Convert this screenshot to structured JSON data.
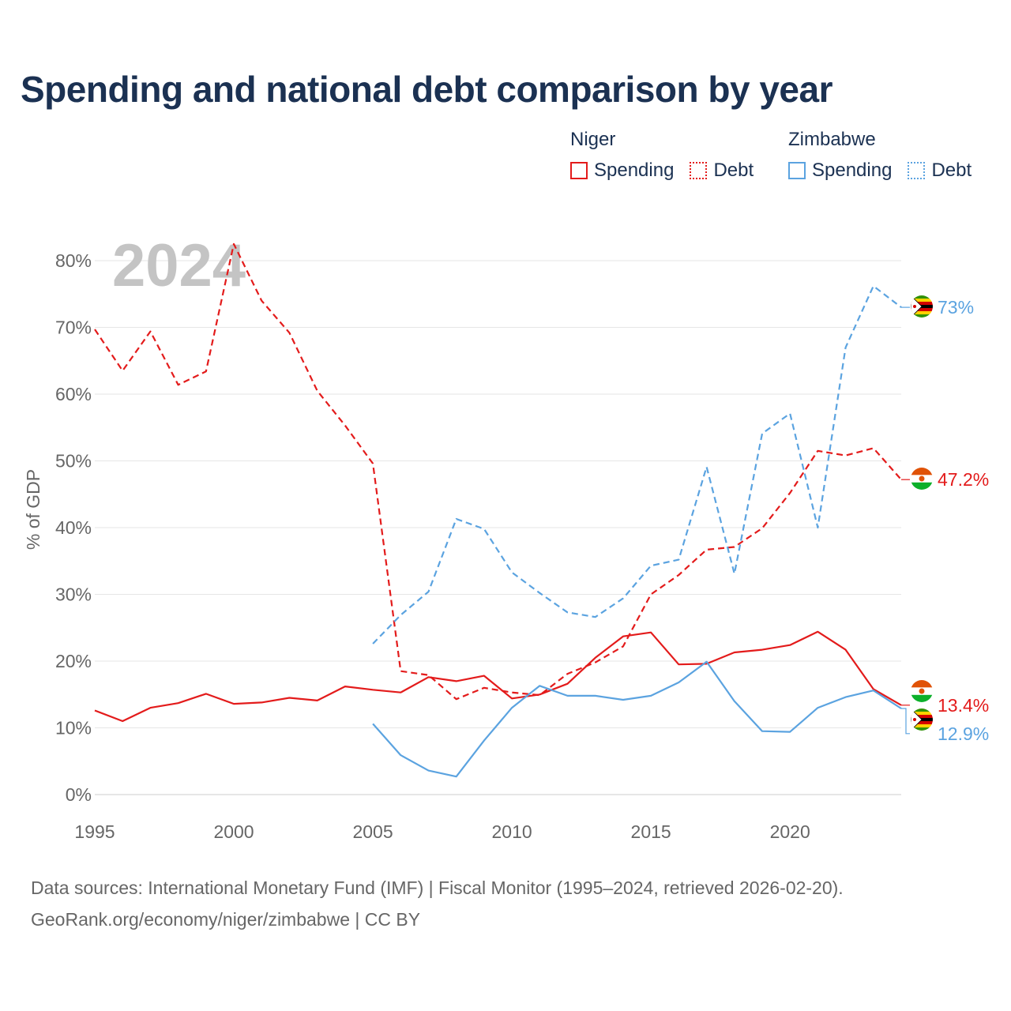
{
  "title": "Spending and national debt comparison by year",
  "legend": {
    "groups": [
      {
        "country": "Niger",
        "color": "#e31b1b",
        "items": [
          "Spending",
          "Debt"
        ]
      },
      {
        "country": "Zimbabwe",
        "color": "#5ba3e0",
        "items": [
          "Spending",
          "Debt"
        ]
      }
    ]
  },
  "chart_data": {
    "type": "line",
    "title": "Spending and national debt comparison by year",
    "year_label": "2024",
    "xlabel": "",
    "ylabel": "% of GDP",
    "xlim": [
      1995,
      2024
    ],
    "ylim": [
      0,
      80
    ],
    "x_ticks": [
      "1995",
      "2000",
      "2005",
      "2010",
      "2015",
      "2020"
    ],
    "x_tick_values": [
      1995,
      2000,
      2005,
      2010,
      2015,
      2020
    ],
    "y_ticks": [
      "0%",
      "10%",
      "20%",
      "30%",
      "40%",
      "50%",
      "60%",
      "70%",
      "80%"
    ],
    "y_tick_values": [
      0,
      10,
      20,
      30,
      40,
      50,
      60,
      70,
      80
    ],
    "series": [
      {
        "name": "Niger Spending",
        "country": "Niger",
        "color": "#e31b1b",
        "dash": "solid",
        "start": 1995,
        "values": [
          12.6,
          11.0,
          13.0,
          13.7,
          15.1,
          13.6,
          13.8,
          14.5,
          14.1,
          16.2,
          15.7,
          15.3,
          17.6,
          17.0,
          17.8,
          14.4,
          15.0,
          16.6,
          20.5,
          23.7,
          24.3,
          19.5,
          19.6,
          21.3,
          21.7,
          22.4,
          24.4,
          21.7,
          15.8,
          13.4
        ],
        "end_label": "13.4%",
        "end_value": 13.4
      },
      {
        "name": "Niger Debt",
        "country": "Niger",
        "color": "#e31b1b",
        "dash": "dashed",
        "start": 1995,
        "values": [
          69.7,
          63.5,
          69.4,
          61.4,
          63.4,
          82.5,
          74.0,
          69.2,
          60.5,
          55.3,
          49.6,
          18.5,
          17.9,
          14.3,
          16.0,
          15.3,
          14.9,
          18.1,
          19.8,
          22.2,
          30.0,
          32.9,
          36.7,
          37.1,
          39.9,
          45.2,
          51.5,
          50.8,
          51.9,
          47.2
        ],
        "end_label": "47.2%",
        "end_value": 47.2
      },
      {
        "name": "Zimbabwe Spending",
        "country": "Zimbabwe",
        "color": "#5ba3e0",
        "dash": "solid",
        "start": 2005,
        "values": [
          10.6,
          5.9,
          3.6,
          2.7,
          8.1,
          13.0,
          16.3,
          14.8,
          14.8,
          14.2,
          14.8,
          16.8,
          19.9,
          14.0,
          9.5,
          9.4,
          13.0,
          14.6,
          15.6,
          12.9
        ],
        "end_label": "12.9%",
        "end_value": 12.9
      },
      {
        "name": "Zimbabwe Debt",
        "country": "Zimbabwe",
        "color": "#5ba3e0",
        "dash": "dashed",
        "start": 2005,
        "values": [
          22.6,
          26.9,
          30.4,
          41.3,
          39.8,
          33.3,
          30.2,
          27.3,
          26.6,
          29.4,
          34.3,
          35.2,
          49.1,
          33.1,
          54.1,
          57.1,
          40.0,
          67.0,
          76.2,
          73.0
        ],
        "end_label": "73%",
        "end_value": 73.0
      }
    ]
  },
  "source": {
    "line1": "Data sources: International Monetary Fund (IMF) | Fiscal Monitor (1995–2024, retrieved 2026-02-20).",
    "line2": "GeoRank.org/economy/niger/zimbabwe | CC BY"
  }
}
